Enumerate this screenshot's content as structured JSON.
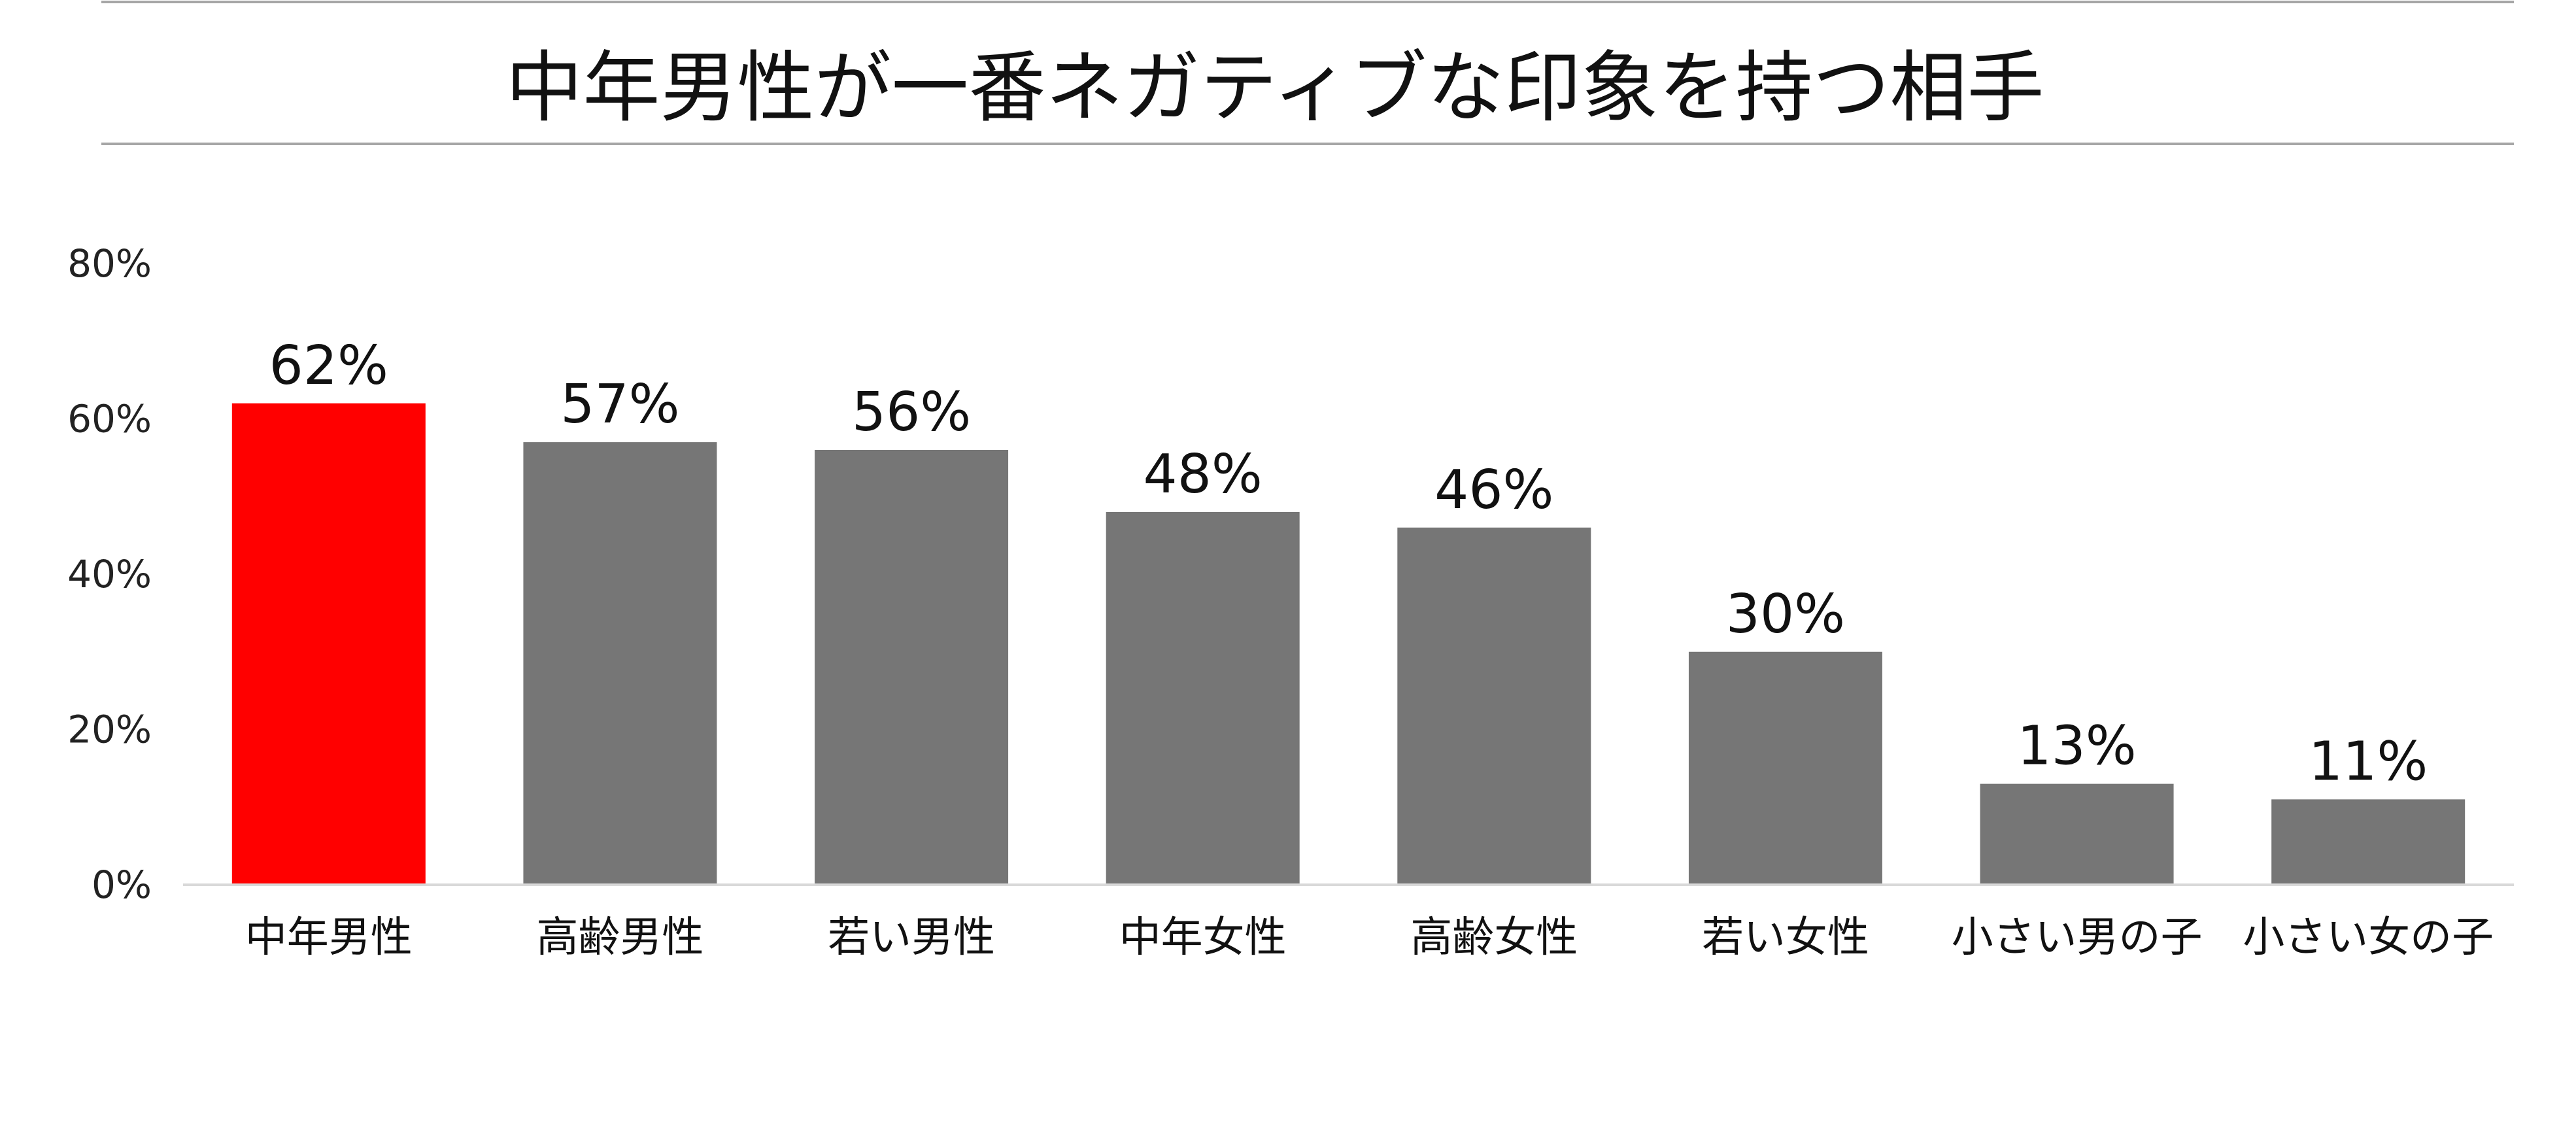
{
  "chart_data": {
    "type": "bar",
    "title": "中年男性が一番ネガティブな印象を持つ相手",
    "xlabel": "",
    "ylabel": "",
    "categories": [
      "中年男性",
      "高齢男性",
      "若い男性",
      "中年女性",
      "高齢女性",
      "若い女性",
      "小さい男の子",
      "小さい女の子"
    ],
    "values": [
      62,
      57,
      56,
      48,
      46,
      30,
      13,
      11
    ],
    "data_labels": [
      "62%",
      "57%",
      "56%",
      "48%",
      "46%",
      "30%",
      "13%",
      "11%"
    ],
    "ylim": [
      0,
      80
    ],
    "yticks": [
      0,
      20,
      40,
      60,
      80
    ],
    "ytick_labels": [
      "0%",
      "20%",
      "40%",
      "60%",
      "80%"
    ],
    "grid": false,
    "legend": "none",
    "colors": {
      "highlight": "#ff0000",
      "bar": "#767676",
      "rule": "#a6a6a6",
      "axis": "#d9d9d9"
    },
    "highlight_index": 0
  }
}
